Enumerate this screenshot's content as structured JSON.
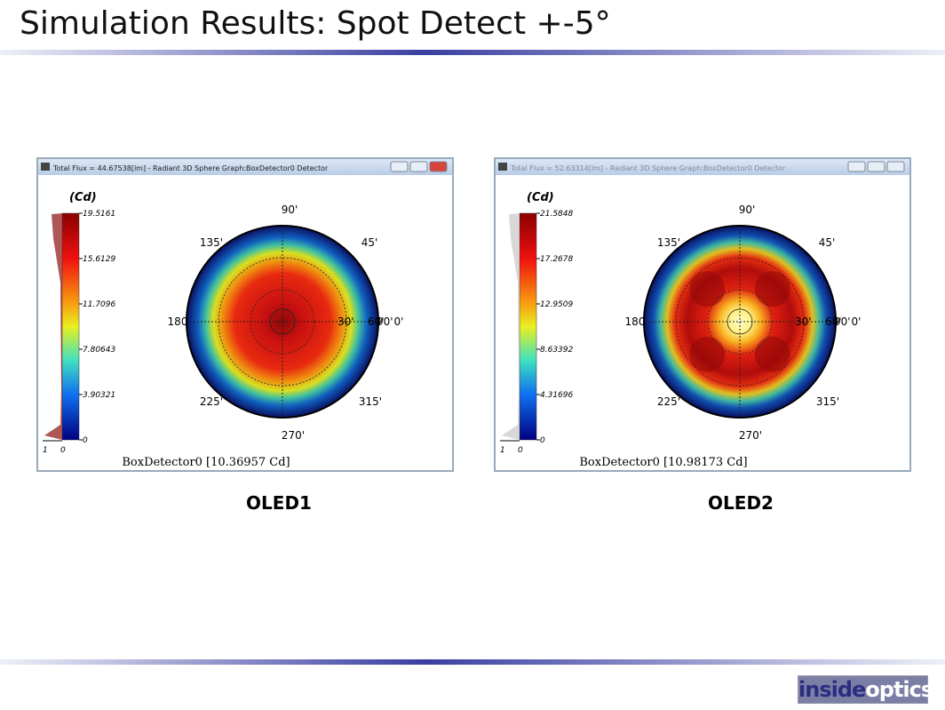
{
  "header": {
    "title": "Simulation Results: Spot Detect +-5°"
  },
  "panels": [
    {
      "window_title": "Total Flux = 44.67538[lm] - Radiant 3D Sphere Graph:BoxDetector0 Detector",
      "unit": "(Cd)",
      "scale_labels": [
        "19.5161",
        "15.6129",
        "11.7096",
        "7.80643",
        "3.90321",
        "0"
      ],
      "histogram_labels": [
        "1",
        "0"
      ],
      "angle_labels": {
        "a90": "90'",
        "a135": "135'",
        "a45": "45'",
        "a180": "180",
        "a0": "0'",
        "a225": "225'",
        "a270": "270'",
        "a315": "315'"
      },
      "radial_labels": [
        "30'",
        "60'",
        "90'"
      ],
      "footer": "BoxDetector0 [10.36957 Cd]",
      "caption": "OLED1"
    },
    {
      "window_title": "Total Flux = 52.63314[lm] - Radiant 3D Sphere Graph:BoxDetector0 Detector",
      "unit": "(Cd)",
      "scale_labels": [
        "21.5848",
        "17.2678",
        "12.9509",
        "8.63392",
        "4.31696",
        "0"
      ],
      "histogram_labels": [
        "1",
        "0"
      ],
      "angle_labels": {
        "a90": "90'",
        "a135": "135'",
        "a45": "45'",
        "a180": "180",
        "a0": "0'",
        "a225": "225'",
        "a270": "270'",
        "a315": "315'"
      },
      "radial_labels": [
        "30'",
        "60'",
        "90'"
      ],
      "footer": "BoxDetector0 [10.98173 Cd]",
      "caption": "OLED2"
    }
  ],
  "logo": {
    "part1": "inside",
    "part2": "optics"
  }
}
